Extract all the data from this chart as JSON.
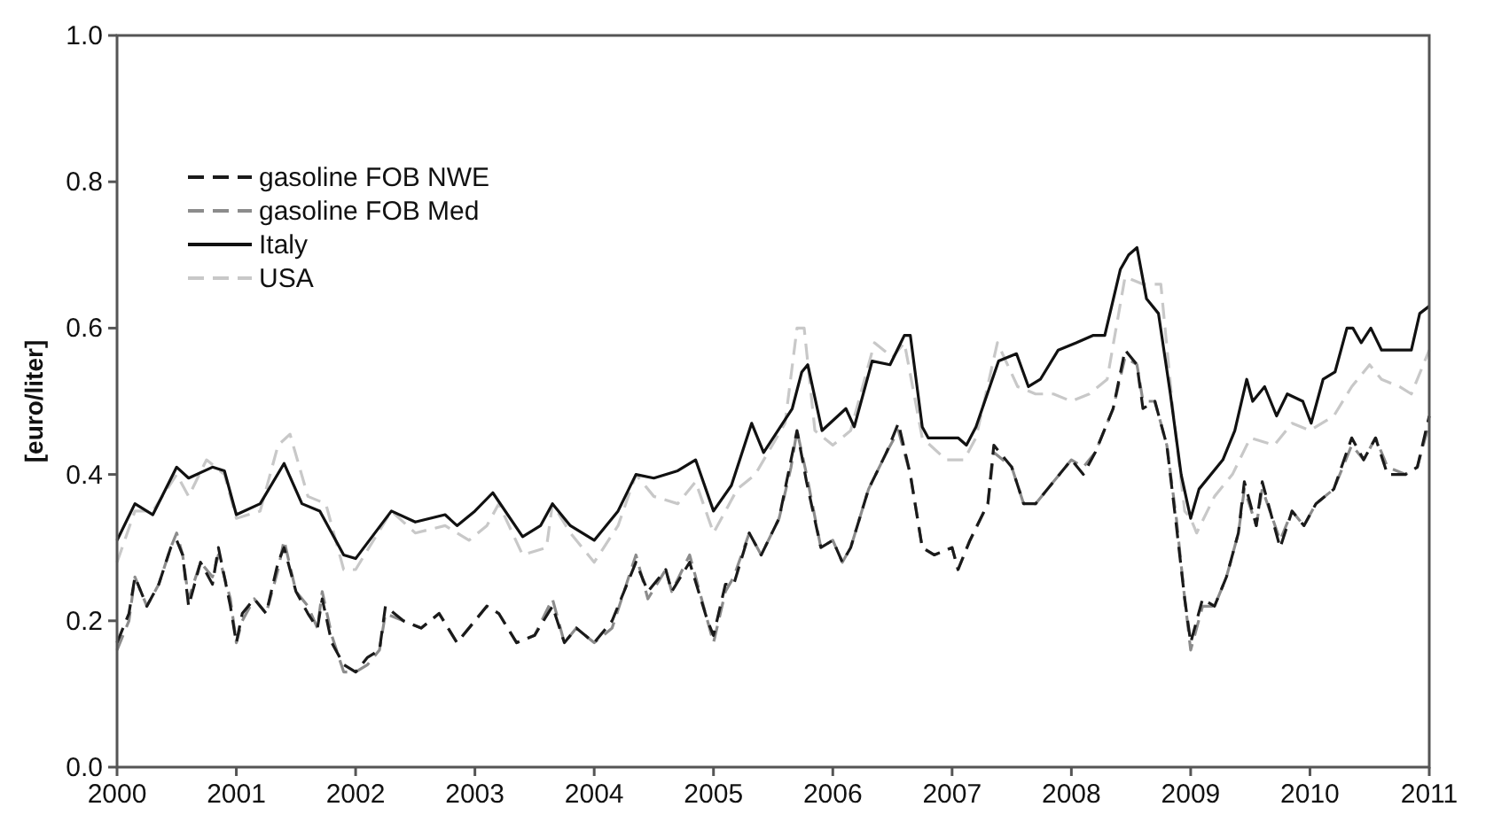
{
  "chart_data": {
    "type": "line",
    "ylabel": "[euro/liter]",
    "xlim": [
      2000,
      2011
    ],
    "xticks": [
      2000,
      2001,
      2002,
      2003,
      2004,
      2005,
      2006,
      2007,
      2008,
      2009,
      2010,
      2011
    ],
    "ylim": [
      0,
      1
    ],
    "yticks": [
      {
        "value": 0,
        "label": "0.0"
      },
      0.2,
      0.4,
      0.6,
      0.8,
      {
        "value": 1,
        "label": "1.0"
      }
    ],
    "grid": false,
    "legend": "top left",
    "series": [
      {
        "name": "gasoline FOB NWE",
        "color": "#1a1a1a",
        "line_style": "dashed",
        "x": [
          2000,
          2000.1,
          2000.15,
          2000.25,
          2000.35,
          2000.45,
          2000.5,
          2000.55,
          2000.6,
          2000.7,
          2000.8,
          2000.85,
          2000.95,
          2001,
          2001.05,
          2001.15,
          2001.25,
          2001.35,
          2001.4,
          2001.5,
          2001.6,
          2001.68,
          2001.72,
          2001.8,
          2001.9,
          2002,
          2002.1,
          2002.2,
          2002.25,
          2002.4,
          2002.55,
          2002.7,
          2002.85,
          2003,
          2003.1,
          2003.2,
          2003.35,
          2003.5,
          2003.65,
          2003.75,
          2003.85,
          2004,
          2004.15,
          2004.35,
          2004.45,
          2004.6,
          2004.65,
          2004.8,
          2004.95,
          2005,
          2005.1,
          2005.17,
          2005.3,
          2005.4,
          2005.55,
          2005.65,
          2005.7,
          2005.78,
          2005.9,
          2006,
          2006.08,
          2006.15,
          2006.3,
          2006.45,
          2006.55,
          2006.65,
          2006.75,
          2006.85,
          2007,
          2007.05,
          2007.15,
          2007.3,
          2007.35,
          2007.5,
          2007.6,
          2007.7,
          2007.85,
          2008,
          2008.1,
          2008.2,
          2008.35,
          2008.45,
          2008.55,
          2008.6,
          2008.7,
          2008.8,
          2008.88,
          2008.95,
          2009,
          2009.1,
          2009.2,
          2009.3,
          2009.4,
          2009.45,
          2009.55,
          2009.6,
          2009.75,
          2009.85,
          2009.95,
          2010.05,
          2010.2,
          2010.35,
          2010.45,
          2010.55,
          2010.65,
          2010.8,
          2010.9,
          2011
        ],
        "values": [
          0.17,
          0.21,
          0.26,
          0.22,
          0.25,
          0.3,
          0.31,
          0.29,
          0.22,
          0.28,
          0.25,
          0.3,
          0.22,
          0.17,
          0.21,
          0.23,
          0.21,
          0.28,
          0.3,
          0.24,
          0.21,
          0.19,
          0.23,
          0.17,
          0.14,
          0.13,
          0.15,
          0.16,
          0.22,
          0.2,
          0.19,
          0.21,
          0.17,
          0.2,
          0.22,
          0.21,
          0.17,
          0.18,
          0.22,
          0.17,
          0.19,
          0.17,
          0.2,
          0.28,
          0.24,
          0.27,
          0.24,
          0.28,
          0.2,
          0.18,
          0.25,
          0.25,
          0.32,
          0.29,
          0.34,
          0.42,
          0.46,
          0.39,
          0.3,
          0.31,
          0.28,
          0.3,
          0.38,
          0.43,
          0.47,
          0.4,
          0.3,
          0.29,
          0.3,
          0.27,
          0.31,
          0.36,
          0.44,
          0.41,
          0.36,
          0.36,
          0.39,
          0.42,
          0.4,
          0.43,
          0.49,
          0.57,
          0.55,
          0.49,
          0.5,
          0.44,
          0.33,
          0.23,
          0.17,
          0.23,
          0.22,
          0.26,
          0.32,
          0.39,
          0.33,
          0.39,
          0.3,
          0.35,
          0.33,
          0.36,
          0.38,
          0.45,
          0.42,
          0.45,
          0.4,
          0.4,
          0.41,
          0.48
        ]
      },
      {
        "name": "gasoline FOB Med",
        "color": "#8c8c8c",
        "line_style": "dashed",
        "x": [
          2000,
          2000.1,
          2000.15,
          2000.25,
          2000.35,
          2000.45,
          2000.5,
          2000.55,
          2000.6,
          2000.7,
          2000.8,
          2000.85,
          2000.95,
          2001,
          2001.05,
          2001.15,
          2001.25,
          2001.35,
          2001.4,
          2001.5,
          2001.6,
          2001.68,
          2001.72,
          2001.8,
          2001.9,
          2002,
          2002.1,
          2002.2,
          2002.25,
          2002.4,
          2002.55,
          2002.7,
          2002.85,
          2003,
          2003.1,
          2003.2,
          2003.35,
          2003.5,
          2003.65,
          2003.75,
          2003.85,
          2004,
          2004.15,
          2004.35,
          2004.45,
          2004.6,
          2004.65,
          2004.8,
          2004.95,
          2005,
          2005.1,
          2005.17,
          2005.3,
          2005.4,
          2005.55,
          2005.65,
          2005.7,
          2005.78,
          2005.9,
          2006,
          2006.08,
          2006.15,
          2006.3,
          2006.45,
          2006.55,
          2006.65,
          2006.75,
          2006.85,
          2007,
          2007.05,
          2007.15,
          2007.3,
          2007.35,
          2007.5,
          2007.6,
          2007.7,
          2007.85,
          2008,
          2008.1,
          2008.2,
          2008.35,
          2008.45,
          2008.55,
          2008.6,
          2008.7,
          2008.8,
          2008.88,
          2008.95,
          2009,
          2009.1,
          2009.2,
          2009.3,
          2009.4,
          2009.45,
          2009.55,
          2009.6,
          2009.75,
          2009.85,
          2009.95,
          2010.05,
          2010.2,
          2010.35,
          2010.45,
          2010.55,
          2010.65,
          2010.8,
          2010.9,
          2011
        ],
        "values": [
          0.16,
          0.2,
          0.26,
          0.22,
          0.25,
          0.3,
          0.32,
          0.29,
          0.23,
          0.28,
          0.26,
          0.29,
          0.23,
          0.17,
          0.2,
          0.23,
          0.21,
          0.27,
          0.31,
          0.24,
          0.22,
          0.19,
          0.24,
          0.18,
          0.13,
          0.13,
          0.14,
          0.16,
          0.21,
          0.2,
          0.19,
          0.21,
          0.17,
          0.2,
          0.22,
          0.21,
          0.17,
          0.18,
          0.23,
          0.17,
          0.19,
          0.17,
          0.19,
          0.29,
          0.23,
          0.27,
          0.24,
          0.29,
          0.2,
          0.17,
          0.24,
          0.26,
          0.32,
          0.29,
          0.34,
          0.41,
          0.46,
          0.4,
          0.3,
          0.31,
          0.28,
          0.3,
          0.38,
          0.43,
          0.46,
          0.4,
          0.3,
          0.29,
          0.3,
          0.27,
          0.31,
          0.36,
          0.43,
          0.41,
          0.36,
          0.36,
          0.39,
          0.42,
          0.41,
          0.43,
          0.49,
          0.56,
          0.55,
          0.5,
          0.5,
          0.44,
          0.34,
          0.23,
          0.16,
          0.22,
          0.22,
          0.26,
          0.32,
          0.38,
          0.33,
          0.38,
          0.31,
          0.35,
          0.33,
          0.36,
          0.38,
          0.44,
          0.42,
          0.45,
          0.41,
          0.4,
          0.41,
          0.47
        ]
      },
      {
        "name": "Italy",
        "color": "#111111",
        "line_style": "solid",
        "x": [
          2000,
          2000.15,
          2000.3,
          2000.5,
          2000.6,
          2000.8,
          2000.9,
          2001,
          2001.2,
          2001.4,
          2001.55,
          2001.7,
          2001.9,
          2002,
          2002.3,
          2002.5,
          2002.75,
          2002.85,
          2003,
          2003.15,
          2003.4,
          2003.55,
          2003.65,
          2003.8,
          2004,
          2004.2,
          2004.35,
          2004.5,
          2004.7,
          2004.85,
          2005,
          2005.15,
          2005.32,
          2005.42,
          2005.66,
          2005.74,
          2005.79,
          2005.91,
          2006.11,
          2006.18,
          2006.33,
          2006.48,
          2006.6,
          2006.65,
          2006.75,
          2006.8,
          2007.05,
          2007.12,
          2007.2,
          2007.39,
          2007.54,
          2007.64,
          2007.74,
          2007.89,
          2008.04,
          2008.18,
          2008.28,
          2008.41,
          2008.48,
          2008.55,
          2008.63,
          2008.73,
          2008.83,
          2008.92,
          2009,
          2009.07,
          2009.27,
          2009.37,
          2009.47,
          2009.52,
          2009.62,
          2009.72,
          2009.81,
          2009.94,
          2010.01,
          2010.11,
          2010.21,
          2010.31,
          2010.36,
          2010.43,
          2010.51,
          2010.6,
          2010.75,
          2010.85,
          2010.92,
          2011
        ],
        "values": [
          0.31,
          0.36,
          0.345,
          0.41,
          0.395,
          0.41,
          0.405,
          0.345,
          0.36,
          0.415,
          0.36,
          0.35,
          0.29,
          0.285,
          0.35,
          0.335,
          0.345,
          0.33,
          0.35,
          0.375,
          0.315,
          0.33,
          0.36,
          0.33,
          0.31,
          0.35,
          0.4,
          0.395,
          0.405,
          0.42,
          0.35,
          0.385,
          0.47,
          0.43,
          0.49,
          0.54,
          0.55,
          0.46,
          0.49,
          0.465,
          0.555,
          0.55,
          0.59,
          0.59,
          0.465,
          0.45,
          0.45,
          0.44,
          0.465,
          0.555,
          0.565,
          0.52,
          0.53,
          0.57,
          0.58,
          0.59,
          0.59,
          0.68,
          0.7,
          0.71,
          0.64,
          0.62,
          0.51,
          0.4,
          0.34,
          0.38,
          0.42,
          0.46,
          0.53,
          0.5,
          0.52,
          0.48,
          0.51,
          0.5,
          0.47,
          0.53,
          0.54,
          0.6,
          0.6,
          0.58,
          0.6,
          0.57,
          0.57,
          0.57,
          0.62,
          0.63
        ]
      },
      {
        "name": "USA",
        "color": "#c8c8c8",
        "line_style": "dashed",
        "x": [
          2000,
          2000.15,
          2000.3,
          2000.5,
          2000.6,
          2000.75,
          2000.9,
          2001,
          2001.2,
          2001.35,
          2001.45,
          2001.6,
          2001.75,
          2001.9,
          2002,
          2002.3,
          2002.5,
          2002.75,
          2002.95,
          2003.1,
          2003.2,
          2003.4,
          2003.6,
          2003.65,
          2003.8,
          2004,
          2004.2,
          2004.35,
          2004.5,
          2004.7,
          2004.85,
          2005,
          2005.2,
          2005.35,
          2005.6,
          2005.7,
          2005.76,
          2005.85,
          2006,
          2006.15,
          2006.35,
          2006.5,
          2006.6,
          2006.75,
          2006.95,
          2007.1,
          2007.2,
          2007.38,
          2007.55,
          2007.7,
          2007.85,
          2008,
          2008.15,
          2008.3,
          2008.45,
          2008.6,
          2008.75,
          2008.85,
          2008.95,
          2009,
          2009.05,
          2009.2,
          2009.35,
          2009.5,
          2009.7,
          2009.85,
          2010,
          2010.2,
          2010.35,
          2010.5,
          2010.6,
          2010.75,
          2010.85,
          2011
        ],
        "values": [
          0.28,
          0.35,
          0.35,
          0.4,
          0.37,
          0.42,
          0.4,
          0.34,
          0.35,
          0.44,
          0.455,
          0.37,
          0.36,
          0.27,
          0.27,
          0.35,
          0.32,
          0.33,
          0.31,
          0.33,
          0.36,
          0.29,
          0.3,
          0.36,
          0.32,
          0.28,
          0.33,
          0.4,
          0.37,
          0.36,
          0.39,
          0.32,
          0.38,
          0.4,
          0.47,
          0.6,
          0.6,
          0.46,
          0.44,
          0.46,
          0.58,
          0.56,
          0.58,
          0.45,
          0.42,
          0.42,
          0.45,
          0.58,
          0.52,
          0.51,
          0.51,
          0.5,
          0.51,
          0.53,
          0.67,
          0.66,
          0.66,
          0.49,
          0.35,
          0.34,
          0.32,
          0.37,
          0.4,
          0.45,
          0.44,
          0.47,
          0.46,
          0.48,
          0.52,
          0.55,
          0.53,
          0.52,
          0.51,
          0.57
        ]
      }
    ]
  }
}
